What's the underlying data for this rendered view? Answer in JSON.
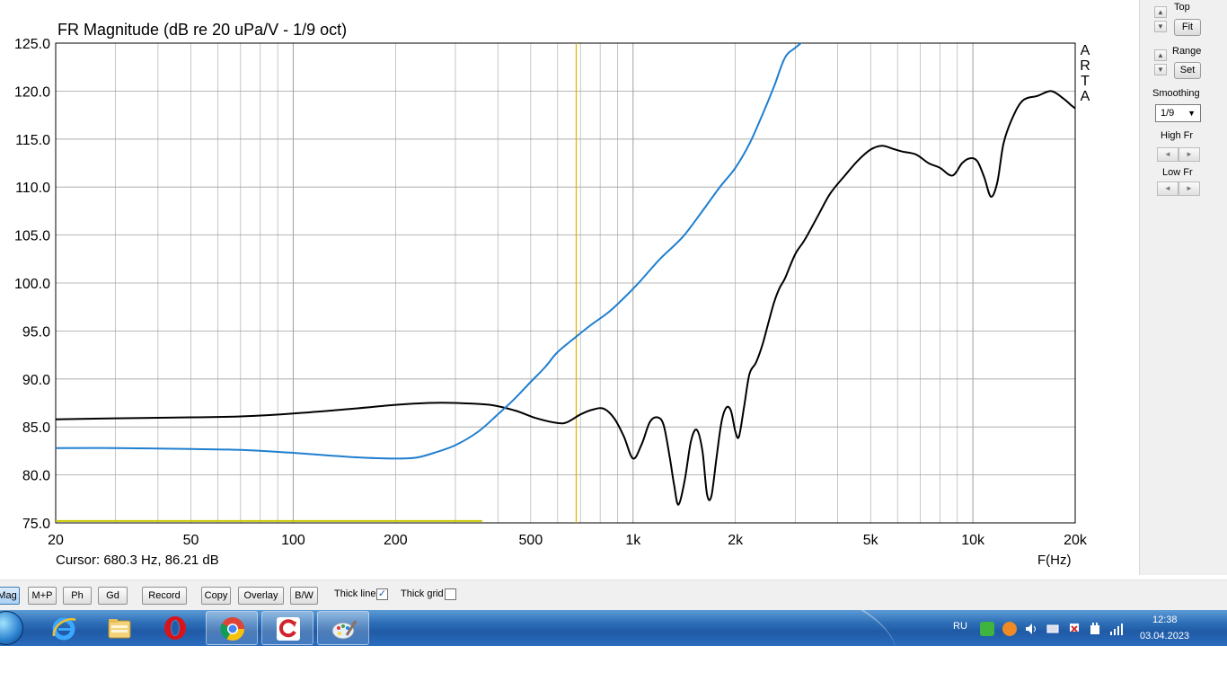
{
  "window": {
    "app_letters": [
      "A",
      "R",
      "T",
      "A"
    ],
    "cursor_readout": "Cursor: 680.3 Hz, 86.21 dB",
    "x_unit_label": "F(Hz)"
  },
  "chart_data": {
    "type": "line",
    "title": "FR Magnitude (dB re 20 uPa/V - 1/9 oct)",
    "xlabel": "F(Hz)",
    "ylabel": "",
    "xscale": "log",
    "xlim": [
      20,
      20000
    ],
    "ylim": [
      75,
      125
    ],
    "grid": true,
    "x_ticks": [
      {
        "value": 20,
        "label": "20"
      },
      {
        "value": 50,
        "label": "50"
      },
      {
        "value": 100,
        "label": "100"
      },
      {
        "value": 200,
        "label": "200"
      },
      {
        "value": 500,
        "label": "500"
      },
      {
        "value": 1000,
        "label": "1k"
      },
      {
        "value": 2000,
        "label": "2k"
      },
      {
        "value": 5000,
        "label": "5k"
      },
      {
        "value": 10000,
        "label": "10k"
      },
      {
        "value": 20000,
        "label": "20k"
      }
    ],
    "y_ticks": [
      {
        "value": 125,
        "label": "125.0"
      },
      {
        "value": 120,
        "label": "120.0"
      },
      {
        "value": 115,
        "label": "115.0"
      },
      {
        "value": 110,
        "label": "110.0"
      },
      {
        "value": 105,
        "label": "105.0"
      },
      {
        "value": 100,
        "label": "100.0"
      },
      {
        "value": 95,
        "label": "95.0"
      },
      {
        "value": 90,
        "label": "90.0"
      },
      {
        "value": 85,
        "label": "85.0"
      },
      {
        "value": 80,
        "label": "80.0"
      },
      {
        "value": 75,
        "label": "75.0"
      }
    ],
    "cursor": {
      "x": 680.3,
      "color": "#e0b000"
    },
    "series": [
      {
        "color": "#000000",
        "x": [
          20,
          30,
          50,
          70,
          100,
          150,
          200,
          250,
          300,
          380,
          450,
          520,
          600,
          640,
          700,
          760,
          820,
          880,
          940,
          1000,
          1060,
          1120,
          1180,
          1230,
          1280,
          1320,
          1360,
          1420,
          1480,
          1540,
          1600,
          1650,
          1700,
          1760,
          1820,
          1880,
          1940,
          2000,
          2050,
          2120,
          2200,
          2300,
          2400,
          2500,
          2600,
          2700,
          2800,
          3000,
          3200,
          3500,
          3800,
          4200,
          4600,
          5000,
          5400,
          5800,
          6200,
          6800,
          7400,
          8000,
          8700,
          9300,
          9800,
          10300,
          10800,
          11300,
          11800,
          12300,
          13000,
          14000,
          15500,
          17000,
          18500,
          19500,
          20000
        ],
        "y": [
          85.8,
          85.9,
          86.0,
          86.1,
          86.4,
          86.9,
          87.3,
          87.5,
          87.5,
          87.3,
          86.7,
          85.9,
          85.4,
          85.5,
          86.3,
          86.8,
          86.9,
          85.9,
          84.0,
          81.7,
          83.2,
          85.5,
          86.0,
          85.2,
          82.0,
          79.0,
          76.9,
          79.5,
          83.5,
          84.7,
          82.5,
          78.0,
          77.8,
          81.8,
          85.5,
          87.0,
          86.7,
          84.5,
          84.0,
          87.0,
          90.5,
          91.7,
          93.5,
          95.8,
          98.0,
          99.5,
          100.5,
          103.0,
          104.5,
          107.0,
          109.3,
          111.2,
          112.8,
          113.9,
          114.3,
          114.0,
          113.7,
          113.4,
          112.5,
          112.0,
          111.2,
          112.5,
          113.0,
          112.7,
          111.0,
          109.0,
          110.5,
          114.5,
          117.0,
          119.0,
          119.5,
          120.0,
          119.2,
          118.5,
          118.2
        ]
      },
      {
        "color": "#1f7fcf",
        "x": [
          20,
          30,
          50,
          70,
          100,
          130,
          160,
          200,
          230,
          260,
          300,
          350,
          400,
          450,
          500,
          550,
          600,
          680,
          750,
          850,
          950,
          1050,
          1200,
          1400,
          1600,
          1800,
          2000,
          2200,
          2400,
          2600,
          2800,
          3000,
          3200
        ],
        "y": [
          82.8,
          82.8,
          82.7,
          82.6,
          82.3,
          82.0,
          81.8,
          81.7,
          81.8,
          82.3,
          83.1,
          84.5,
          86.3,
          88.0,
          89.7,
          91.2,
          92.8,
          94.4,
          95.6,
          97.0,
          98.6,
          100.2,
          102.5,
          104.8,
          107.5,
          110.0,
          112.0,
          114.5,
          117.5,
          120.5,
          123.5,
          124.5,
          125.3
        ]
      },
      {
        "color": "#c8c800",
        "x": [
          20,
          360
        ],
        "y": [
          75.2,
          75.2
        ]
      }
    ]
  },
  "right_panel": {
    "top_label": "Top",
    "fit_label": "Fit",
    "range_label": "Range",
    "set_label": "Set",
    "smoothing_label": "Smoothing",
    "smoothing_value": "1/9",
    "high_fr_label": "High Fr",
    "low_fr_label": "Low Fr"
  },
  "toolbar": {
    "buttons": [
      "Mag",
      "M+P",
      "Ph",
      "Gd",
      "Record",
      "Copy",
      "Overlay",
      "B/W"
    ],
    "active": "Mag",
    "thick_line_label": "Thick line",
    "thick_line_checked": true,
    "thick_grid_label": "Thick grid",
    "thick_grid_checked": false
  },
  "taskbar": {
    "icons": [
      "start-orb",
      "internet-explorer-icon",
      "file-explorer-icon",
      "opera-icon",
      "chrome-icon",
      "refresh-app-icon",
      "paint-icon"
    ],
    "language": "RU",
    "time": "12:38",
    "date": "03.04.2023"
  },
  "colors": {
    "grid": "#a0a0a0",
    "black_curve": "#000000",
    "blue_curve": "#1f7fcf",
    "yellow_line": "#c8c800",
    "cursor": "#e0b000",
    "taskbar": "#2f6fb8"
  }
}
